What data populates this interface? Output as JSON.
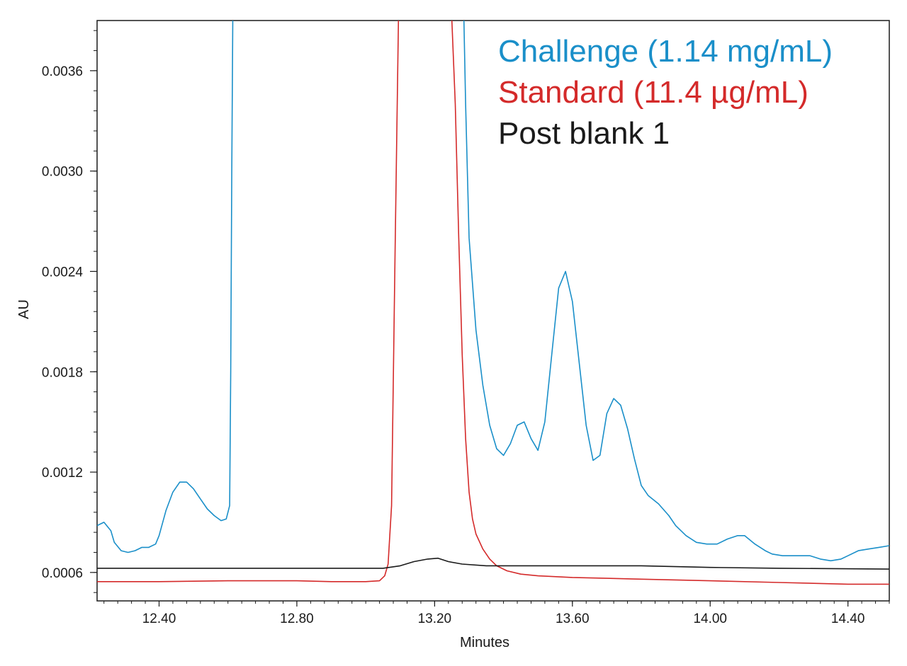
{
  "chart_data": {
    "type": "line",
    "title": "",
    "xlabel": "Minutes",
    "ylabel": "AU",
    "xlim": [
      12.22,
      14.52
    ],
    "ylim": [
      0.00043,
      0.0039
    ],
    "x_ticks": [
      "12.40",
      "12.80",
      "13.20",
      "13.60",
      "14.00",
      "14.40"
    ],
    "y_ticks": [
      "0.0006",
      "0.0012",
      "0.0018",
      "0.0024",
      "0.0030",
      "0.0036"
    ],
    "grid": false,
    "legend_position": "top-right",
    "series": [
      {
        "name": "Challenge (1.14 mg/mL)",
        "color": "#1a8fc9",
        "points": [
          [
            12.22,
            0.00088
          ],
          [
            12.24,
            0.0009
          ],
          [
            12.26,
            0.00085
          ],
          [
            12.27,
            0.00078
          ],
          [
            12.29,
            0.00073
          ],
          [
            12.31,
            0.00072
          ],
          [
            12.33,
            0.00073
          ],
          [
            12.35,
            0.00075
          ],
          [
            12.37,
            0.00075
          ],
          [
            12.39,
            0.00077
          ],
          [
            12.4,
            0.00082
          ],
          [
            12.42,
            0.00097
          ],
          [
            12.44,
            0.00108
          ],
          [
            12.46,
            0.00114
          ],
          [
            12.48,
            0.00114
          ],
          [
            12.5,
            0.0011
          ],
          [
            12.52,
            0.00104
          ],
          [
            12.54,
            0.00098
          ],
          [
            12.56,
            0.00094
          ],
          [
            12.58,
            0.00091
          ],
          [
            12.595,
            0.00092
          ],
          [
            12.605,
            0.001
          ],
          [
            12.608,
            0.0018
          ],
          [
            12.611,
            0.003
          ],
          [
            12.614,
            0.0039
          ]
        ]
      },
      {
        "name": "Challenge (1.14 mg/mL)",
        "color": "#1a8fc9",
        "points": [
          [
            13.285,
            0.0039
          ],
          [
            13.29,
            0.0034
          ],
          [
            13.3,
            0.0026
          ],
          [
            13.32,
            0.00205
          ],
          [
            13.34,
            0.00172
          ],
          [
            13.36,
            0.00148
          ],
          [
            13.38,
            0.00134
          ],
          [
            13.4,
            0.0013
          ],
          [
            13.42,
            0.00137
          ],
          [
            13.44,
            0.00148
          ],
          [
            13.46,
            0.0015
          ],
          [
            13.48,
            0.0014
          ],
          [
            13.5,
            0.00133
          ],
          [
            13.52,
            0.0015
          ],
          [
            13.54,
            0.0019
          ],
          [
            13.56,
            0.0023
          ],
          [
            13.58,
            0.0024
          ],
          [
            13.6,
            0.00222
          ],
          [
            13.62,
            0.00185
          ],
          [
            13.64,
            0.00148
          ],
          [
            13.66,
            0.00127
          ],
          [
            13.68,
            0.0013
          ],
          [
            13.7,
            0.00155
          ],
          [
            13.72,
            0.00164
          ],
          [
            13.74,
            0.0016
          ],
          [
            13.76,
            0.00146
          ],
          [
            13.78,
            0.00128
          ],
          [
            13.8,
            0.00112
          ],
          [
            13.82,
            0.00106
          ],
          [
            13.85,
            0.00101
          ],
          [
            13.88,
            0.00094
          ],
          [
            13.9,
            0.00088
          ],
          [
            13.93,
            0.00082
          ],
          [
            13.96,
            0.00078
          ],
          [
            13.99,
            0.00077
          ],
          [
            14.02,
            0.00077
          ],
          [
            14.05,
            0.0008
          ],
          [
            14.08,
            0.00082
          ],
          [
            14.1,
            0.00082
          ],
          [
            14.13,
            0.00077
          ],
          [
            14.16,
            0.00073
          ],
          [
            14.18,
            0.00071
          ],
          [
            14.21,
            0.0007
          ],
          [
            14.25,
            0.0007
          ],
          [
            14.29,
            0.0007
          ],
          [
            14.32,
            0.00068
          ],
          [
            14.35,
            0.00067
          ],
          [
            14.38,
            0.00068
          ],
          [
            14.4,
            0.0007
          ],
          [
            14.43,
            0.00073
          ],
          [
            14.46,
            0.00074
          ],
          [
            14.49,
            0.00075
          ],
          [
            14.52,
            0.00076
          ]
        ]
      },
      {
        "name": "Standard (11.4 µg/mL)",
        "color": "#d42a2a",
        "points": [
          [
            12.22,
            0.000545
          ],
          [
            12.4,
            0.000545
          ],
          [
            12.6,
            0.00055
          ],
          [
            12.8,
            0.00055
          ],
          [
            12.9,
            0.000545
          ],
          [
            13.0,
            0.000545
          ],
          [
            13.04,
            0.00055
          ],
          [
            13.055,
            0.00058
          ],
          [
            13.065,
            0.00065
          ],
          [
            13.075,
            0.001
          ],
          [
            13.085,
            0.0025
          ],
          [
            13.095,
            0.0039
          ]
        ]
      },
      {
        "name": "Standard (11.4 µg/mL)",
        "color": "#d42a2a",
        "points": [
          [
            13.25,
            0.0039
          ],
          [
            13.26,
            0.0034
          ],
          [
            13.27,
            0.0026
          ],
          [
            13.28,
            0.0019
          ],
          [
            13.29,
            0.0014
          ],
          [
            13.3,
            0.00108
          ],
          [
            13.31,
            0.00092
          ],
          [
            13.32,
            0.00083
          ],
          [
            13.34,
            0.00074
          ],
          [
            13.36,
            0.00068
          ],
          [
            13.38,
            0.00064
          ],
          [
            13.41,
            0.00061
          ],
          [
            13.45,
            0.00059
          ],
          [
            13.5,
            0.00058
          ],
          [
            13.6,
            0.00057
          ],
          [
            13.7,
            0.000565
          ],
          [
            13.8,
            0.00056
          ],
          [
            14.0,
            0.00055
          ],
          [
            14.2,
            0.00054
          ],
          [
            14.4,
            0.00053
          ],
          [
            14.52,
            0.00053
          ]
        ]
      },
      {
        "name": "Post blank 1",
        "color": "#1a1a1a",
        "points": [
          [
            12.22,
            0.000625
          ],
          [
            12.6,
            0.000625
          ],
          [
            12.9,
            0.000625
          ],
          [
            13.05,
            0.000625
          ],
          [
            13.1,
            0.00064
          ],
          [
            13.14,
            0.000665
          ],
          [
            13.18,
            0.00068
          ],
          [
            13.21,
            0.000685
          ],
          [
            13.24,
            0.000665
          ],
          [
            13.28,
            0.00065
          ],
          [
            13.35,
            0.00064
          ],
          [
            13.5,
            0.00064
          ],
          [
            13.8,
            0.00064
          ],
          [
            14.0,
            0.00063
          ],
          [
            14.2,
            0.000625
          ],
          [
            14.52,
            0.00062
          ]
        ]
      }
    ],
    "legend": [
      {
        "label": "Challenge (1.14 mg/mL)",
        "color": "#1a8fc9"
      },
      {
        "label": "Standard (11.4 µg/mL)",
        "color": "#d42a2a"
      },
      {
        "label": "Post blank 1",
        "color": "#1a1a1a"
      }
    ]
  }
}
